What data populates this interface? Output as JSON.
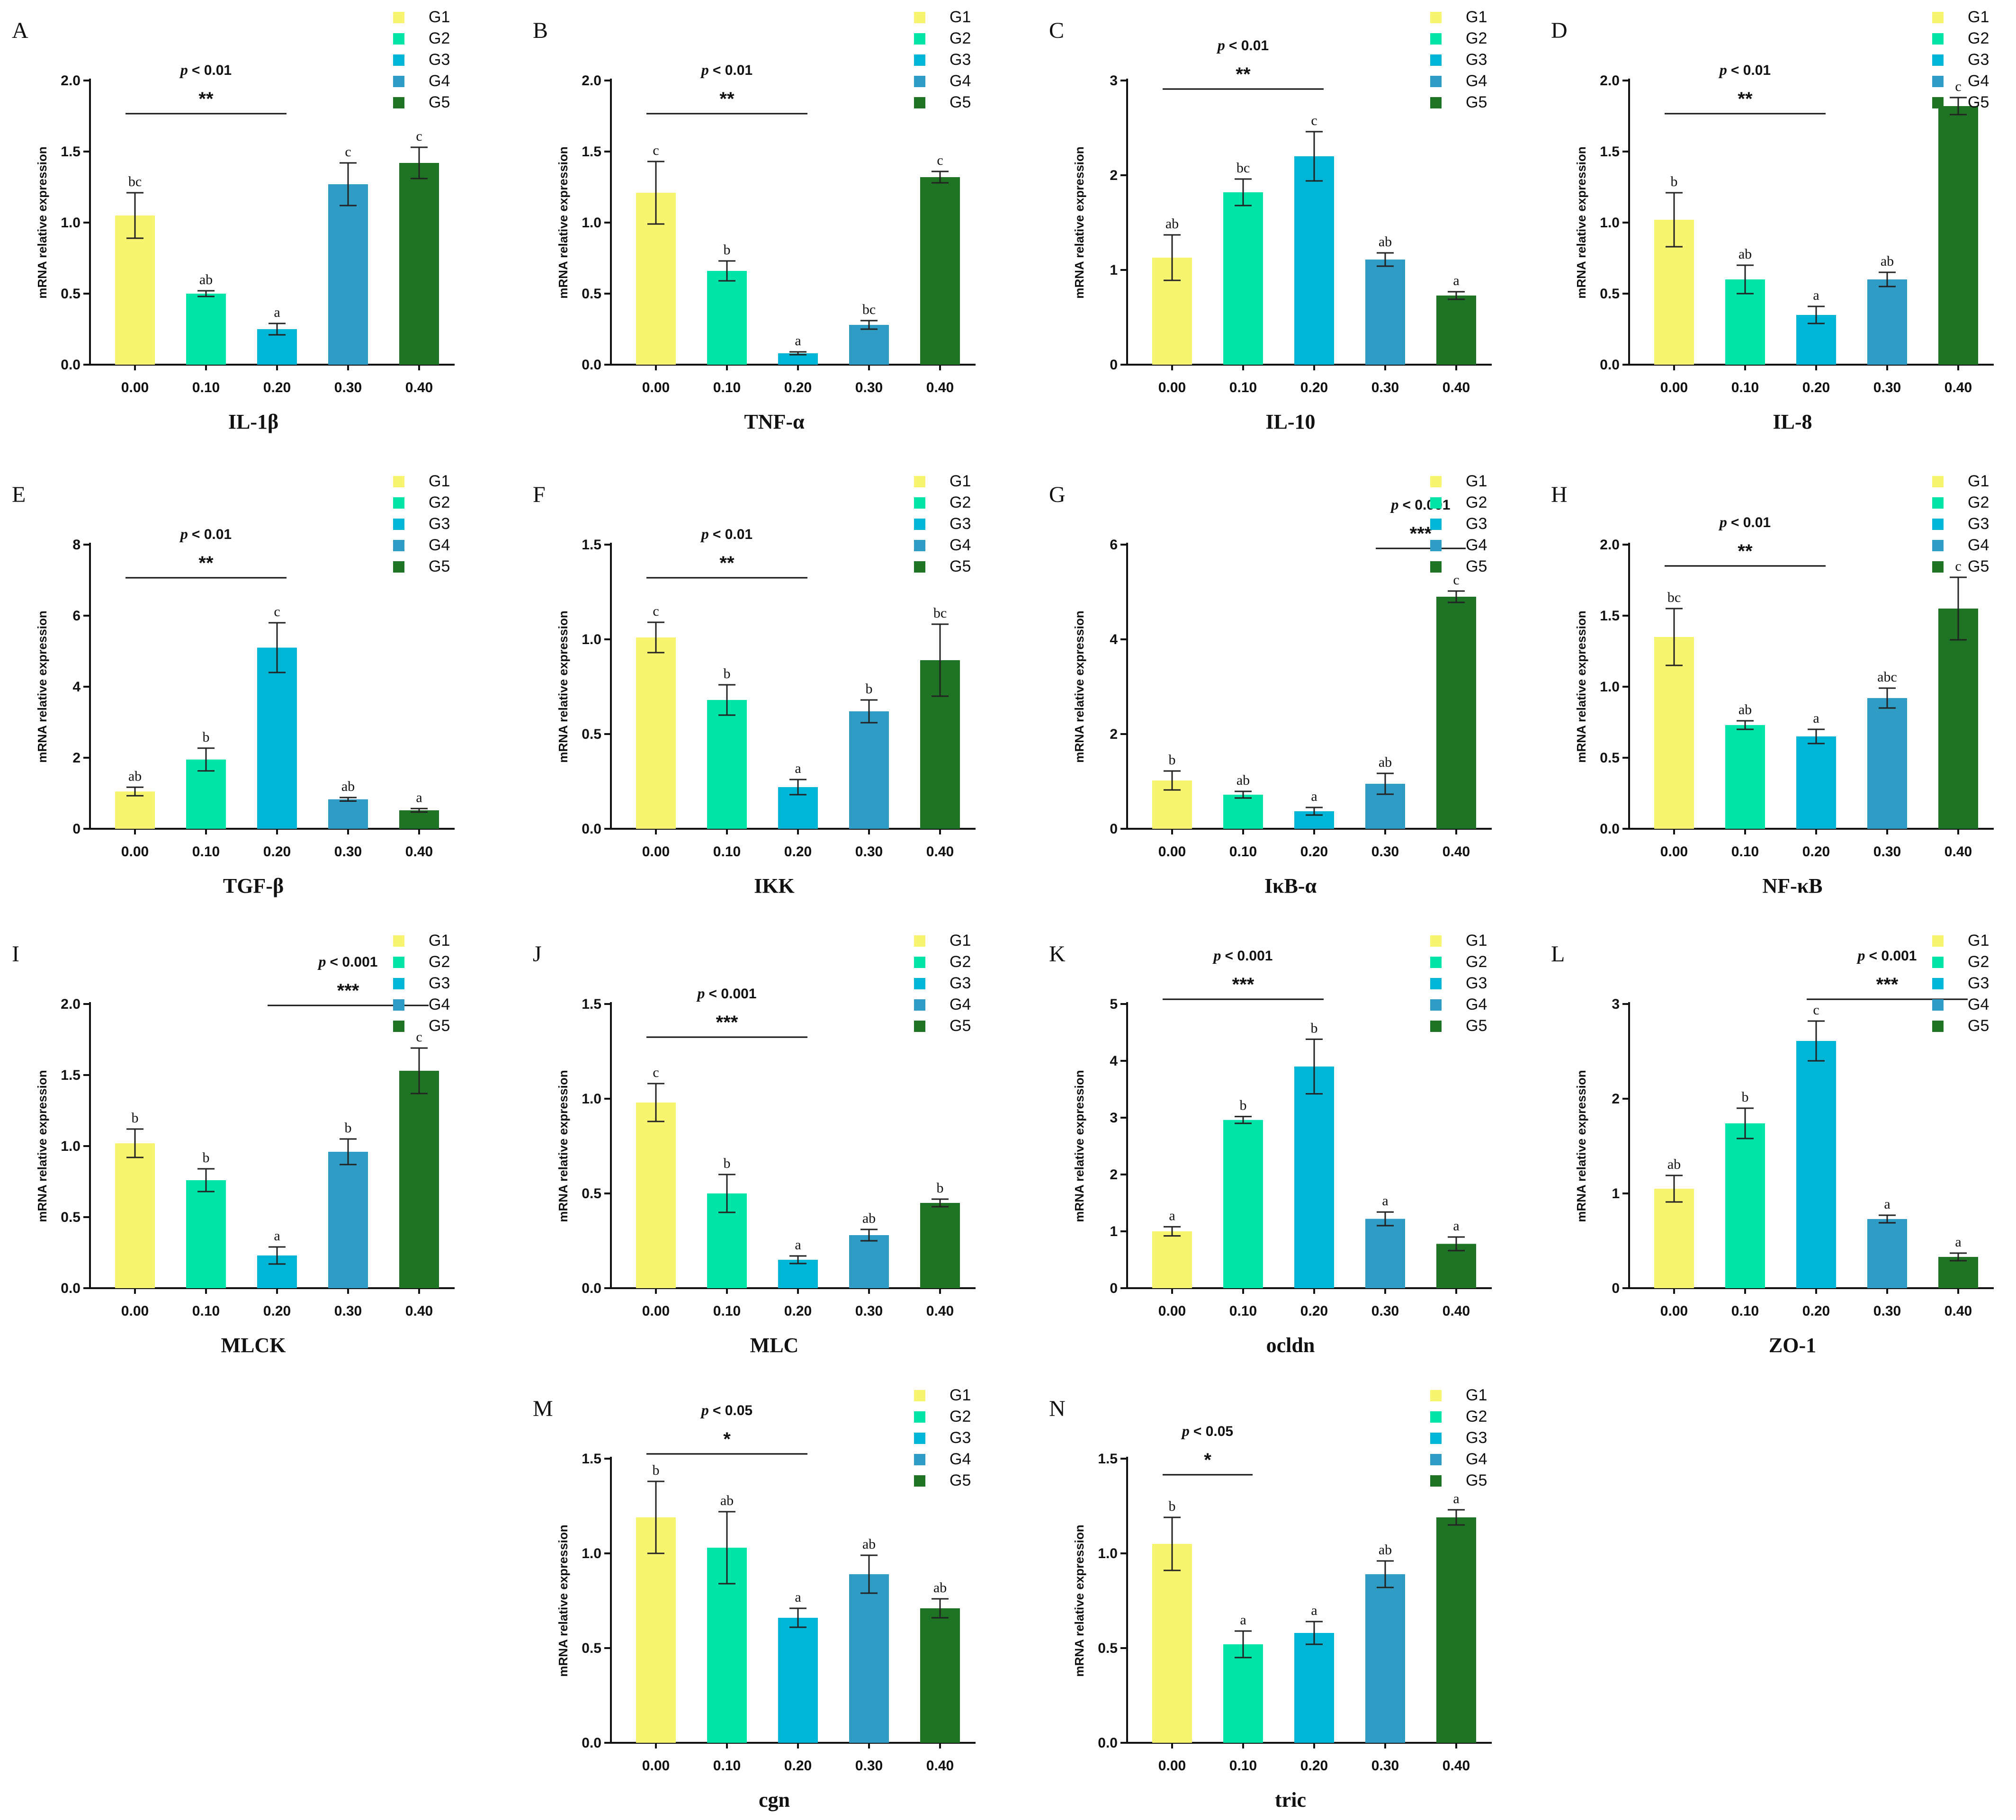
{
  "figure_title": "",
  "y_axis_label": "mRNA relative expression",
  "legend_labels": [
    "G1",
    "G2",
    "G3",
    "G4",
    "G5"
  ],
  "colors": [
    "#f7f56f",
    "#00e4a8",
    "#00b5d6",
    "#2f9cc6",
    "#1e7424"
  ],
  "chart_data": [
    {
      "panel": "A",
      "type": "bar",
      "xlabel": "IL-1β",
      "categories": [
        "0.00",
        "0.10",
        "0.20",
        "0.30",
        "0.40"
      ],
      "values": [
        1.05,
        0.5,
        0.25,
        1.27,
        1.42
      ],
      "errors": [
        0.16,
        0.02,
        0.04,
        0.15,
        0.11
      ],
      "letters": [
        "bc",
        "ab",
        "a",
        "c",
        "c"
      ],
      "ylim": [
        0,
        2.0
      ],
      "yticks": [
        "0.0",
        "0.5",
        "1.0",
        "1.5",
        "2.0"
      ],
      "p_text": "< 0.01",
      "stars": "**",
      "bracket": [
        0,
        2
      ]
    },
    {
      "panel": "B",
      "type": "bar",
      "xlabel": "TNF-α",
      "categories": [
        "0.00",
        "0.10",
        "0.20",
        "0.30",
        "0.40"
      ],
      "values": [
        1.21,
        0.66,
        0.08,
        0.28,
        1.32
      ],
      "errors": [
        0.22,
        0.07,
        0.01,
        0.03,
        0.04
      ],
      "letters": [
        "c",
        "b",
        "a",
        "bc",
        "c"
      ],
      "ylim": [
        0,
        2.0
      ],
      "yticks": [
        "0.0",
        "0.5",
        "1.0",
        "1.5",
        "2.0"
      ],
      "p_text": "< 0.01",
      "stars": "**",
      "bracket": [
        0,
        2
      ]
    },
    {
      "panel": "C",
      "type": "bar",
      "xlabel": "IL-10",
      "categories": [
        "0.00",
        "0.10",
        "0.20",
        "0.30",
        "0.40"
      ],
      "values": [
        1.13,
        1.82,
        2.2,
        1.11,
        0.73
      ],
      "errors": [
        0.24,
        0.14,
        0.26,
        0.07,
        0.04
      ],
      "letters": [
        "ab",
        "bc",
        "c",
        "ab",
        "a"
      ],
      "ylim": [
        0,
        3
      ],
      "yticks": [
        "0",
        "1",
        "2",
        "3"
      ],
      "p_text": "< 0.01",
      "stars": "**",
      "bracket": [
        0,
        2
      ]
    },
    {
      "panel": "D",
      "type": "bar",
      "xlabel": "IL-8",
      "categories": [
        "0.00",
        "0.10",
        "0.20",
        "0.30",
        "0.40"
      ],
      "values": [
        1.02,
        0.6,
        0.35,
        0.6,
        1.82
      ],
      "errors": [
        0.19,
        0.1,
        0.06,
        0.05,
        0.06
      ],
      "letters": [
        "b",
        "ab",
        "a",
        "ab",
        "c"
      ],
      "ylim": [
        0,
        2.0
      ],
      "yticks": [
        "0.0",
        "0.5",
        "1.0",
        "1.5",
        "2.0"
      ],
      "p_text": "< 0.01",
      "stars": "**",
      "bracket": [
        0,
        2
      ]
    },
    {
      "panel": "E",
      "type": "bar",
      "xlabel": "TGF-β",
      "categories": [
        "0.00",
        "0.10",
        "0.20",
        "0.30",
        "0.40"
      ],
      "values": [
        1.05,
        1.95,
        5.1,
        0.83,
        0.52
      ],
      "errors": [
        0.12,
        0.32,
        0.7,
        0.05,
        0.05
      ],
      "letters": [
        "ab",
        "b",
        "c",
        "ab",
        "a"
      ],
      "ylim": [
        0,
        8
      ],
      "yticks": [
        "0",
        "2",
        "4",
        "6",
        "8"
      ],
      "p_text": "< 0.01",
      "stars": "**",
      "bracket": [
        0,
        2
      ]
    },
    {
      "panel": "F",
      "type": "bar",
      "xlabel": "IKK",
      "categories": [
        "0.00",
        "0.10",
        "0.20",
        "0.30",
        "0.40"
      ],
      "values": [
        1.01,
        0.68,
        0.22,
        0.62,
        0.89
      ],
      "errors": [
        0.08,
        0.08,
        0.04,
        0.06,
        0.19
      ],
      "letters": [
        "c",
        "b",
        "a",
        "b",
        "bc"
      ],
      "ylim": [
        0,
        1.5
      ],
      "yticks": [
        "0.0",
        "0.5",
        "1.0",
        "1.5"
      ],
      "p_text": "< 0.01",
      "stars": "**",
      "bracket": [
        0,
        2
      ]
    },
    {
      "panel": "G",
      "type": "bar",
      "xlabel": "IκB-α",
      "categories": [
        "0.00",
        "0.10",
        "0.20",
        "0.30",
        "0.40"
      ],
      "values": [
        1.02,
        0.72,
        0.37,
        0.95,
        4.9
      ],
      "errors": [
        0.2,
        0.07,
        0.08,
        0.22,
        0.12
      ],
      "letters": [
        "b",
        "ab",
        "a",
        "ab",
        "c"
      ],
      "ylim": [
        0,
        6
      ],
      "yticks": [
        "0",
        "2",
        "4",
        "6"
      ],
      "p_text": "< 0.001",
      "stars": "***",
      "bracket": [
        3,
        4
      ]
    },
    {
      "panel": "H",
      "type": "bar",
      "xlabel": "NF-κB",
      "categories": [
        "0.00",
        "0.10",
        "0.20",
        "0.30",
        "0.40"
      ],
      "values": [
        1.35,
        0.73,
        0.65,
        0.92,
        1.55
      ],
      "errors": [
        0.2,
        0.03,
        0.05,
        0.07,
        0.22
      ],
      "letters": [
        "bc",
        "ab",
        "a",
        "abc",
        "c"
      ],
      "ylim": [
        0,
        2.0
      ],
      "yticks": [
        "0.0",
        "0.5",
        "1.0",
        "1.5",
        "2.0"
      ],
      "p_text": "< 0.01",
      "stars": "**",
      "bracket": [
        0,
        2
      ]
    },
    {
      "panel": "I",
      "type": "bar",
      "xlabel": "MLCK",
      "categories": [
        "0.00",
        "0.10",
        "0.20",
        "0.30",
        "0.40"
      ],
      "values": [
        1.02,
        0.76,
        0.23,
        0.96,
        1.53
      ],
      "errors": [
        0.1,
        0.08,
        0.06,
        0.09,
        0.16
      ],
      "letters": [
        "b",
        "b",
        "a",
        "b",
        "c"
      ],
      "ylim": [
        0,
        2.0
      ],
      "yticks": [
        "0.0",
        "0.5",
        "1.0",
        "1.5",
        "2.0"
      ],
      "p_text": "< 0.001",
      "stars": "***",
      "bracket": [
        2,
        4
      ]
    },
    {
      "panel": "J",
      "type": "bar",
      "xlabel": "MLC",
      "categories": [
        "0.00",
        "0.10",
        "0.20",
        "0.30",
        "0.40"
      ],
      "values": [
        0.98,
        0.5,
        0.15,
        0.28,
        0.45
      ],
      "errors": [
        0.1,
        0.1,
        0.02,
        0.03,
        0.02
      ],
      "letters": [
        "c",
        "b",
        "a",
        "ab",
        "b"
      ],
      "ylim": [
        0,
        1.5
      ],
      "yticks": [
        "0.0",
        "0.5",
        "1.0",
        "1.5"
      ],
      "p_text": "< 0.001",
      "stars": "***",
      "bracket": [
        0,
        2
      ]
    },
    {
      "panel": "K",
      "type": "bar",
      "xlabel": "ocldn",
      "categories": [
        "0.00",
        "0.10",
        "0.20",
        "0.30",
        "0.40"
      ],
      "values": [
        1.0,
        2.96,
        3.9,
        1.22,
        0.78
      ],
      "errors": [
        0.08,
        0.06,
        0.48,
        0.12,
        0.12
      ],
      "letters": [
        "a",
        "b",
        "b",
        "a",
        "a"
      ],
      "ylim": [
        0,
        5
      ],
      "yticks": [
        "0",
        "1",
        "2",
        "3",
        "4",
        "5"
      ],
      "p_text": "< 0.001",
      "stars": "***",
      "bracket": [
        0,
        2
      ]
    },
    {
      "panel": "L",
      "type": "bar",
      "xlabel": "ZO-1",
      "categories": [
        "0.00",
        "0.10",
        "0.20",
        "0.30",
        "0.40"
      ],
      "values": [
        1.05,
        1.74,
        2.61,
        0.73,
        0.33
      ],
      "errors": [
        0.14,
        0.16,
        0.21,
        0.04,
        0.04
      ],
      "letters": [
        "ab",
        "b",
        "c",
        "a",
        "a"
      ],
      "ylim": [
        0,
        3
      ],
      "yticks": [
        "0",
        "1",
        "2",
        "3"
      ],
      "p_text": "< 0.001",
      "stars": "***",
      "bracket": [
        2,
        4
      ]
    },
    {
      "panel": "M",
      "type": "bar",
      "xlabel": "cgn",
      "categories": [
        "0.00",
        "0.10",
        "0.20",
        "0.30",
        "0.40"
      ],
      "values": [
        1.19,
        1.03,
        0.66,
        0.89,
        0.71
      ],
      "errors": [
        0.19,
        0.19,
        0.05,
        0.1,
        0.05
      ],
      "letters": [
        "b",
        "ab",
        "a",
        "ab",
        "ab"
      ],
      "ylim": [
        0,
        1.5
      ],
      "yticks": [
        "0.0",
        "0.5",
        "1.0",
        "1.5"
      ],
      "p_text": "< 0.05",
      "stars": "*",
      "bracket": [
        0,
        2
      ]
    },
    {
      "panel": "N",
      "type": "bar",
      "xlabel": "tric",
      "categories": [
        "0.00",
        "0.10",
        "0.20",
        "0.30",
        "0.40"
      ],
      "values": [
        1.05,
        0.52,
        0.58,
        0.89,
        1.19
      ],
      "errors": [
        0.14,
        0.07,
        0.06,
        0.07,
        0.04
      ],
      "letters": [
        "b",
        "a",
        "a",
        "ab",
        "a"
      ],
      "ylim": [
        0,
        1.5
      ],
      "yticks": [
        "0.0",
        "0.5",
        "1.0",
        "1.5"
      ],
      "p_text": "< 0.05",
      "stars": "*",
      "bracket": [
        0,
        1
      ]
    }
  ]
}
